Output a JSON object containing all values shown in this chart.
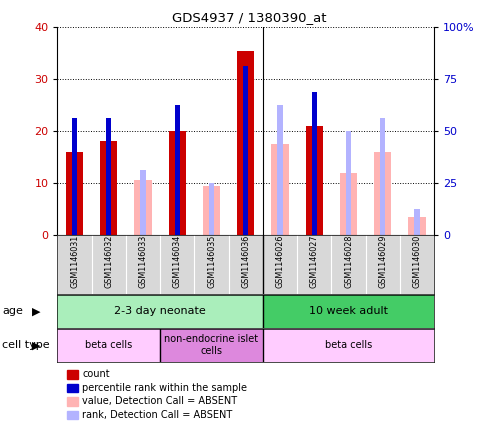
{
  "title": "GDS4937 / 1380390_at",
  "samples": [
    "GSM1146031",
    "GSM1146032",
    "GSM1146033",
    "GSM1146034",
    "GSM1146035",
    "GSM1146036",
    "GSM1146026",
    "GSM1146027",
    "GSM1146028",
    "GSM1146029",
    "GSM1146030"
  ],
  "count_values": [
    16,
    18,
    null,
    20,
    null,
    35.5,
    null,
    21,
    null,
    null,
    null
  ],
  "rank_values": [
    22.5,
    22.5,
    null,
    25,
    null,
    32.5,
    null,
    27.5,
    null,
    null,
    null
  ],
  "absent_count": [
    null,
    null,
    10.5,
    null,
    9.5,
    null,
    17.5,
    null,
    12,
    16,
    3.5
  ],
  "absent_rank": [
    null,
    null,
    12.5,
    null,
    10,
    null,
    25,
    null,
    20,
    22.5,
    5
  ],
  "count_color": "#cc0000",
  "rank_color": "#0000cc",
  "absent_count_color": "#ffb3b3",
  "absent_rank_color": "#b3b3ff",
  "ylim_left": [
    0,
    40
  ],
  "ylim_right": [
    0,
    100
  ],
  "yticks_left": [
    0,
    10,
    20,
    30,
    40
  ],
  "ytick_labels_left": [
    "0",
    "10",
    "20",
    "30",
    "40"
  ],
  "yticks_right": [
    0,
    25,
    50,
    75,
    100
  ],
  "ytick_labels_right": [
    "0",
    "25",
    "50",
    "75",
    "100%"
  ],
  "age_groups": [
    {
      "label": "2-3 day neonate",
      "start": 0,
      "end": 6,
      "color": "#aaeebb"
    },
    {
      "label": "10 week adult",
      "start": 6,
      "end": 11,
      "color": "#44cc66"
    }
  ],
  "cell_type_groups": [
    {
      "label": "beta cells",
      "start": 0,
      "end": 3,
      "color": "#ffccff"
    },
    {
      "label": "non-endocrine islet\ncells",
      "start": 3,
      "end": 6,
      "color": "#dd88dd"
    },
    {
      "label": "beta cells",
      "start": 6,
      "end": 11,
      "color": "#ffccff"
    }
  ],
  "legend_items": [
    {
      "label": "count",
      "color": "#cc0000"
    },
    {
      "label": "percentile rank within the sample",
      "color": "#0000cc"
    },
    {
      "label": "value, Detection Call = ABSENT",
      "color": "#ffb3b3"
    },
    {
      "label": "rank, Detection Call = ABSENT",
      "color": "#b3b3ff"
    }
  ],
  "age_label": "age",
  "cell_type_label": "cell type",
  "background_color": "#ffffff",
  "axis_label_color_left": "#cc0000",
  "axis_label_color_right": "#0000cc"
}
